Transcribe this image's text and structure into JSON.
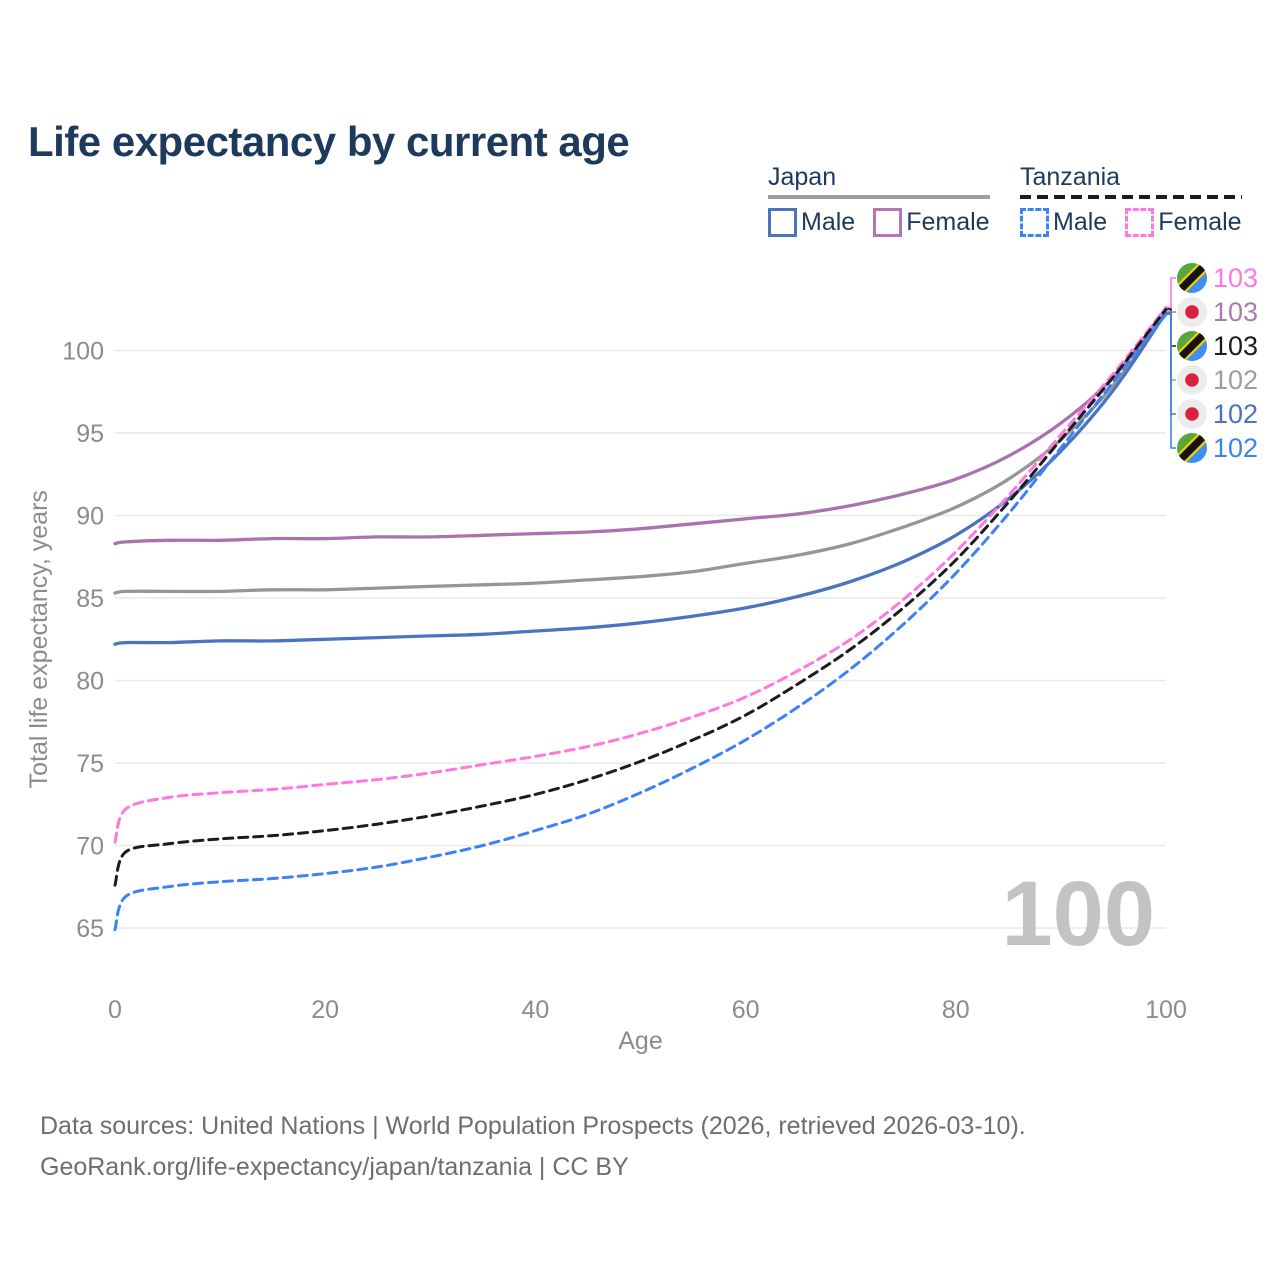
{
  "title": "Life expectancy by current age",
  "legend": {
    "groups": [
      {
        "country": "Japan",
        "line_style": "solid",
        "underline_color": "#9e9e9e",
        "items": [
          {
            "label": "Male",
            "color": "#4a74bd",
            "dashed": false
          },
          {
            "label": "Female",
            "color": "#b476b4",
            "dashed": false
          }
        ]
      },
      {
        "country": "Tanzania",
        "line_style": "dashed",
        "underline_color": "#1c1c1c",
        "items": [
          {
            "label": "Male",
            "color": "#3b82f6",
            "dashed": true
          },
          {
            "label": "Female",
            "color": "#ff77e2",
            "dashed": true
          }
        ]
      }
    ]
  },
  "watermark": "100",
  "footer": {
    "line1": "Data sources: United Nations | World Population Prospects (2026, retrieved 2026-03-10).",
    "line2": "GeoRank.org/life-expectancy/japan/tanzania | CC BY"
  },
  "chart_data": {
    "type": "line",
    "title": "Life expectancy by current age",
    "xlabel": "Age",
    "ylabel": "Total life expectancy, years",
    "x_ticks": [
      0,
      20,
      40,
      60,
      80,
      100
    ],
    "y_ticks": [
      65,
      70,
      75,
      80,
      85,
      90,
      95,
      100
    ],
    "xlim": [
      0,
      100
    ],
    "ylim": [
      63.5,
      104
    ],
    "grid": "horizontal",
    "grid_color": "#e9e9e9",
    "axis_text_color": "#8c8c8c",
    "ages": [
      0,
      1,
      5,
      10,
      15,
      20,
      25,
      30,
      35,
      40,
      45,
      50,
      55,
      60,
      65,
      70,
      75,
      80,
      85,
      90,
      95,
      100
    ],
    "series": [
      {
        "name": "Japan Female",
        "country": "Japan",
        "sex": "Female",
        "color": "#a873ae",
        "dashed": false,
        "values": [
          88.3,
          88.4,
          88.5,
          88.5,
          88.6,
          88.6,
          88.7,
          88.7,
          88.8,
          88.9,
          89.0,
          89.2,
          89.5,
          89.8,
          90.1,
          90.6,
          91.3,
          92.2,
          93.6,
          95.6,
          98.4,
          102.55
        ]
      },
      {
        "name": "Japan Both sexes",
        "country": "Japan",
        "sex": "Both",
        "color": "#969696",
        "dashed": false,
        "values": [
          85.3,
          85.4,
          85.4,
          85.4,
          85.5,
          85.5,
          85.6,
          85.7,
          85.8,
          85.9,
          86.1,
          86.3,
          86.6,
          87.1,
          87.6,
          88.3,
          89.3,
          90.5,
          92.2,
          94.6,
          97.9,
          102.35
        ]
      },
      {
        "name": "Japan Male",
        "country": "Japan",
        "sex": "Male",
        "color": "#4a74bd",
        "dashed": false,
        "values": [
          82.2,
          82.3,
          82.3,
          82.4,
          82.4,
          82.5,
          82.6,
          82.7,
          82.8,
          83.0,
          83.2,
          83.5,
          83.9,
          84.4,
          85.1,
          86.0,
          87.2,
          88.8,
          91.0,
          93.9,
          97.6,
          102.3
        ]
      },
      {
        "name": "Tanzania Female",
        "country": "Tanzania",
        "sex": "Female",
        "color": "#ff77e2",
        "dashed": true,
        "values": [
          70.2,
          72.2,
          72.9,
          73.2,
          73.4,
          73.7,
          74.0,
          74.4,
          74.9,
          75.4,
          76.0,
          76.8,
          77.8,
          79.0,
          80.6,
          82.5,
          84.9,
          87.8,
          91.2,
          94.9,
          98.6,
          102.6
        ]
      },
      {
        "name": "Tanzania Both sexes",
        "country": "Tanzania",
        "sex": "Both",
        "color": "#1c1c1c",
        "dashed": true,
        "values": [
          67.6,
          69.6,
          70.1,
          70.4,
          70.6,
          70.9,
          71.3,
          71.8,
          72.4,
          73.1,
          74.0,
          75.1,
          76.4,
          77.9,
          79.8,
          81.9,
          84.4,
          87.3,
          90.8,
          94.6,
          98.4,
          102.5
        ]
      },
      {
        "name": "Tanzania Male",
        "country": "Tanzania",
        "sex": "Male",
        "color": "#3b82f6",
        "dashed": true,
        "values": [
          64.9,
          66.9,
          67.5,
          67.8,
          68.0,
          68.3,
          68.7,
          69.3,
          70.0,
          70.9,
          71.9,
          73.2,
          74.7,
          76.4,
          78.4,
          80.7,
          83.4,
          86.5,
          90.1,
          94.1,
          98.1,
          102.2
        ]
      }
    ],
    "end_labels": [
      {
        "text": "103",
        "flag": "tanzania",
        "color": "#ff77e2",
        "series": "Tanzania Female"
      },
      {
        "text": "103",
        "flag": "japan",
        "color": "#a87cab",
        "series": "Japan Female"
      },
      {
        "text": "103",
        "flag": "tanzania",
        "color": "#1c1c1c",
        "series": "Tanzania Both sexes"
      },
      {
        "text": "102",
        "flag": "japan",
        "color": "#9e9e9e",
        "series": "Japan Both sexes"
      },
      {
        "text": "102",
        "flag": "japan",
        "color": "#4a74bd",
        "series": "Japan Male"
      },
      {
        "text": "102",
        "flag": "tanzania",
        "color": "#3b82f6",
        "series": "Tanzania Male"
      }
    ],
    "legend_position": "top-right"
  }
}
